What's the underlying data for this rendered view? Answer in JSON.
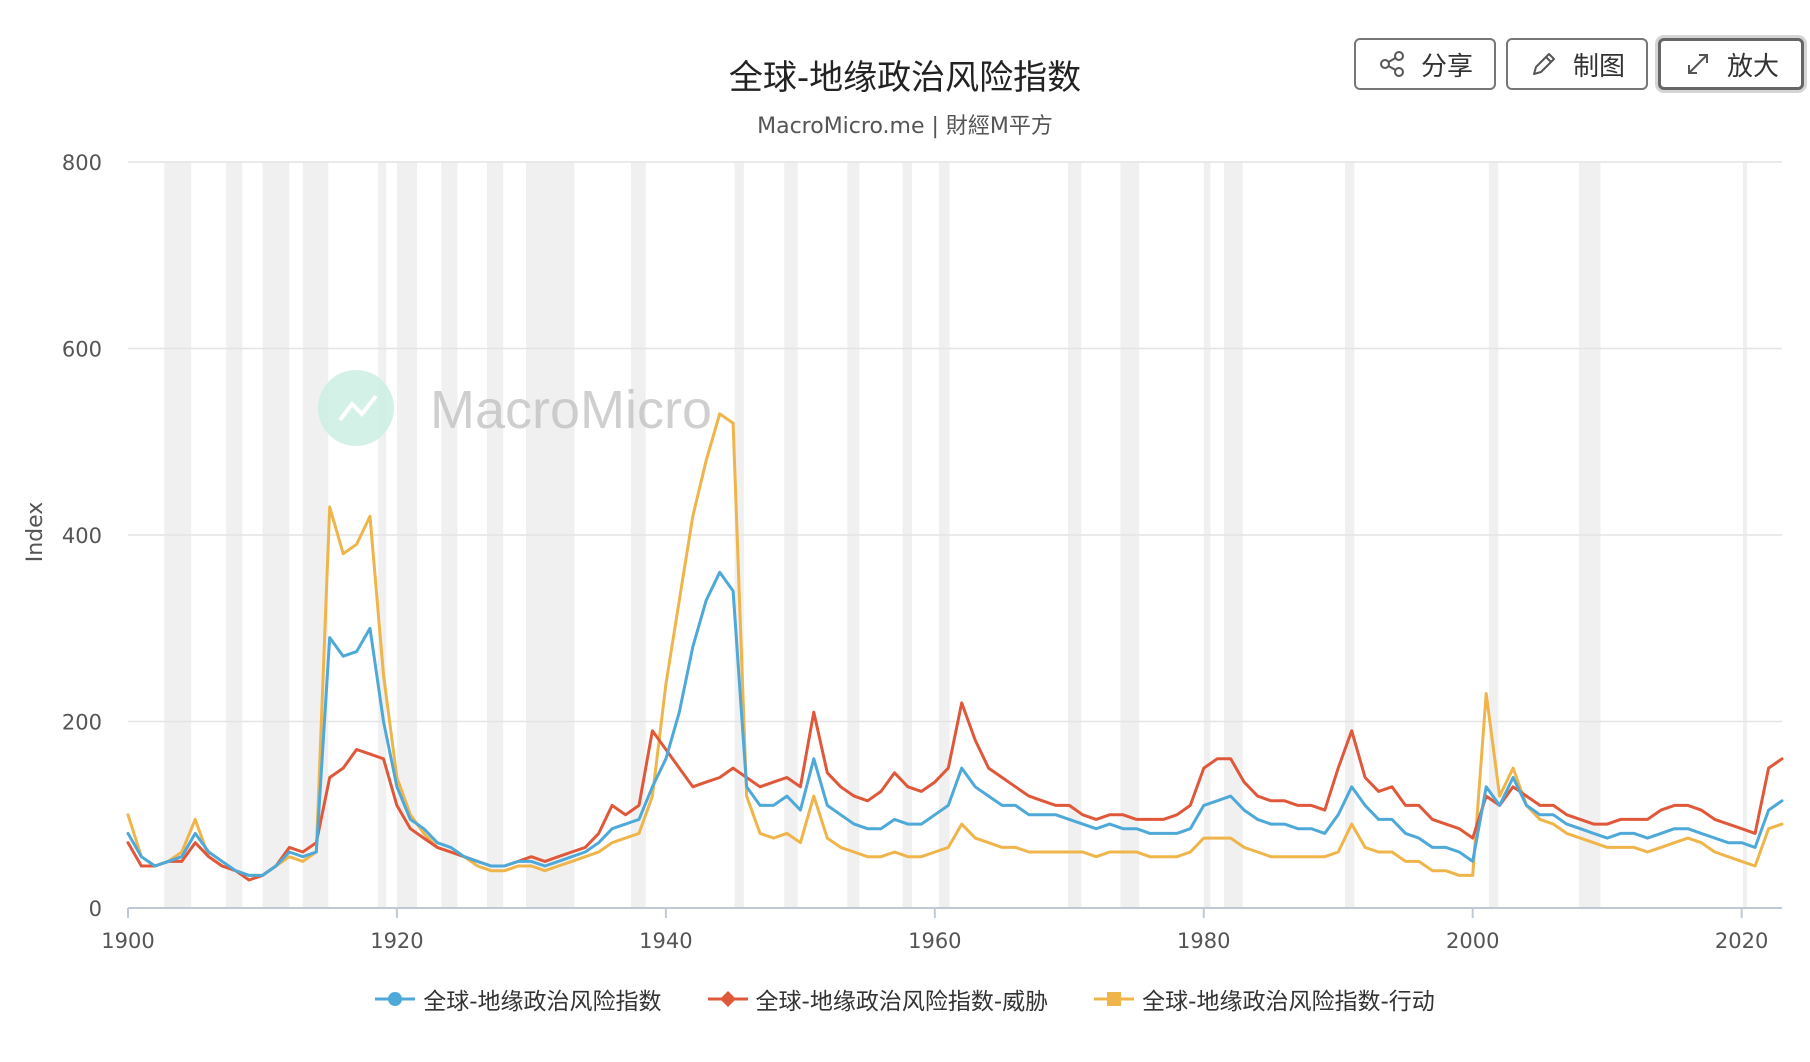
{
  "title": "全球-地缘政治风险指数",
  "subtitle": "MacroMicro.me | 財經M平方",
  "watermark": "MacroMicro",
  "buttons": {
    "share": "分享",
    "draw": "制图",
    "zoom": "放大"
  },
  "icons": {
    "share": "share-icon",
    "draw": "pencil-icon",
    "zoom": "expand-icon"
  },
  "colors": {
    "gpr": "#4ea9d8",
    "threats": "#e0583a",
    "acts": "#efb54a",
    "band": "#f0f0f0",
    "grid": "#e4e4e4"
  },
  "chart_data": {
    "type": "line",
    "title": "全球-地缘政治风险指数",
    "subtitle": "MacroMicro.me | 財經M平方",
    "ylabel": "Index",
    "ylim": [
      0,
      800
    ],
    "xlim": [
      1900,
      2023
    ],
    "yticks": [
      0,
      200,
      400,
      600,
      800
    ],
    "xticks": [
      1900,
      1920,
      1940,
      1960,
      1980,
      2000,
      2020
    ],
    "grid": true,
    "legend_position": "bottom",
    "recession_bands": [
      [
        1902.7,
        1904.7
      ],
      [
        1907.3,
        1908.5
      ],
      [
        1910.0,
        1912.0
      ],
      [
        1913.0,
        1914.9
      ],
      [
        1918.6,
        1919.2
      ],
      [
        1920.0,
        1921.5
      ],
      [
        1923.3,
        1924.5
      ],
      [
        1926.7,
        1927.9
      ],
      [
        1929.6,
        1933.2
      ],
      [
        1937.4,
        1938.5
      ],
      [
        1945.1,
        1945.8
      ],
      [
        1948.8,
        1949.8
      ],
      [
        1953.5,
        1954.4
      ],
      [
        1957.6,
        1958.3
      ],
      [
        1960.3,
        1961.1
      ],
      [
        1969.9,
        1970.9
      ],
      [
        1973.8,
        1975.2
      ],
      [
        1980.0,
        1980.5
      ],
      [
        1981.5,
        1982.9
      ],
      [
        1990.5,
        1991.2
      ],
      [
        2001.2,
        2001.9
      ],
      [
        2007.9,
        2009.5
      ],
      [
        2020.1,
        2020.4
      ]
    ],
    "x": [
      1900,
      1901,
      1902,
      1903,
      1904,
      1905,
      1906,
      1907,
      1908,
      1909,
      1910,
      1911,
      1912,
      1913,
      1914,
      1915,
      1916,
      1917,
      1918,
      1919,
      1920,
      1921,
      1922,
      1923,
      1924,
      1925,
      1926,
      1927,
      1928,
      1929,
      1930,
      1931,
      1932,
      1933,
      1934,
      1935,
      1936,
      1937,
      1938,
      1939,
      1940,
      1941,
      1942,
      1943,
      1944,
      1945,
      1946,
      1947,
      1948,
      1949,
      1950,
      1951,
      1952,
      1953,
      1954,
      1955,
      1956,
      1957,
      1958,
      1959,
      1960,
      1961,
      1962,
      1963,
      1964,
      1965,
      1966,
      1967,
      1968,
      1969,
      1970,
      1971,
      1972,
      1973,
      1974,
      1975,
      1976,
      1977,
      1978,
      1979,
      1980,
      1981,
      1982,
      1983,
      1984,
      1985,
      1986,
      1987,
      1988,
      1989,
      1990,
      1991,
      1992,
      1993,
      1994,
      1995,
      1996,
      1997,
      1998,
      1999,
      2000,
      2001,
      2002,
      2003,
      2004,
      2005,
      2006,
      2007,
      2008,
      2009,
      2010,
      2011,
      2012,
      2013,
      2014,
      2015,
      2016,
      2017,
      2018,
      2019,
      2020,
      2021,
      2022,
      2023
    ],
    "series": [
      {
        "name": "全球-地缘政治风险指数",
        "marker": "circle",
        "values": [
          80,
          55,
          45,
          50,
          55,
          80,
          60,
          50,
          40,
          35,
          35,
          45,
          60,
          55,
          60,
          290,
          270,
          275,
          300,
          200,
          130,
          95,
          85,
          70,
          65,
          55,
          50,
          45,
          45,
          50,
          50,
          45,
          50,
          55,
          60,
          70,
          85,
          90,
          95,
          130,
          160,
          210,
          280,
          330,
          360,
          340,
          130,
          110,
          110,
          120,
          105,
          160,
          110,
          100,
          90,
          85,
          85,
          95,
          90,
          90,
          100,
          110,
          150,
          130,
          120,
          110,
          110,
          100,
          100,
          100,
          95,
          90,
          85,
          90,
          85,
          85,
          80,
          80,
          80,
          85,
          110,
          115,
          120,
          105,
          95,
          90,
          90,
          85,
          85,
          80,
          100,
          130,
          110,
          95,
          95,
          80,
          75,
          65,
          65,
          60,
          50,
          130,
          110,
          140,
          110,
          100,
          100,
          90,
          85,
          80,
          75,
          80,
          80,
          75,
          80,
          85,
          85,
          80,
          75,
          70,
          70,
          65,
          105,
          115
        ]
      },
      {
        "name": "全球-地缘政治风险指数-威胁",
        "marker": "diamond",
        "values": [
          70,
          45,
          45,
          50,
          50,
          70,
          55,
          45,
          40,
          30,
          35,
          45,
          65,
          60,
          70,
          140,
          150,
          170,
          165,
          160,
          110,
          85,
          75,
          65,
          60,
          55,
          50,
          45,
          45,
          50,
          55,
          50,
          55,
          60,
          65,
          80,
          110,
          100,
          110,
          190,
          170,
          150,
          130,
          135,
          140,
          150,
          140,
          130,
          135,
          140,
          130,
          210,
          145,
          130,
          120,
          115,
          125,
          145,
          130,
          125,
          135,
          150,
          220,
          180,
          150,
          140,
          130,
          120,
          115,
          110,
          110,
          100,
          95,
          100,
          100,
          95,
          95,
          95,
          100,
          110,
          150,
          160,
          160,
          135,
          120,
          115,
          115,
          110,
          110,
          105,
          150,
          190,
          140,
          125,
          130,
          110,
          110,
          95,
          90,
          85,
          75,
          120,
          110,
          130,
          120,
          110,
          110,
          100,
          95,
          90,
          90,
          95,
          95,
          95,
          105,
          110,
          110,
          105,
          95,
          90,
          85,
          80,
          150,
          160
        ]
      },
      {
        "name": "全球-地缘政治风险指数-行动",
        "marker": "square",
        "values": [
          100,
          55,
          45,
          50,
          60,
          95,
          55,
          45,
          40,
          35,
          35,
          45,
          55,
          50,
          60,
          430,
          380,
          390,
          420,
          250,
          140,
          100,
          80,
          65,
          60,
          55,
          45,
          40,
          40,
          45,
          45,
          40,
          45,
          50,
          55,
          60,
          70,
          75,
          80,
          120,
          240,
          330,
          420,
          480,
          530,
          520,
          120,
          80,
          75,
          80,
          70,
          120,
          75,
          65,
          60,
          55,
          55,
          60,
          55,
          55,
          60,
          65,
          90,
          75,
          70,
          65,
          65,
          60,
          60,
          60,
          60,
          60,
          55,
          60,
          60,
          60,
          55,
          55,
          55,
          60,
          75,
          75,
          75,
          65,
          60,
          55,
          55,
          55,
          55,
          55,
          60,
          90,
          65,
          60,
          60,
          50,
          50,
          40,
          40,
          35,
          35,
          230,
          120,
          150,
          110,
          95,
          90,
          80,
          75,
          70,
          65,
          65,
          65,
          60,
          65,
          70,
          75,
          70,
          60,
          55,
          50,
          45,
          85,
          90
        ]
      }
    ]
  }
}
